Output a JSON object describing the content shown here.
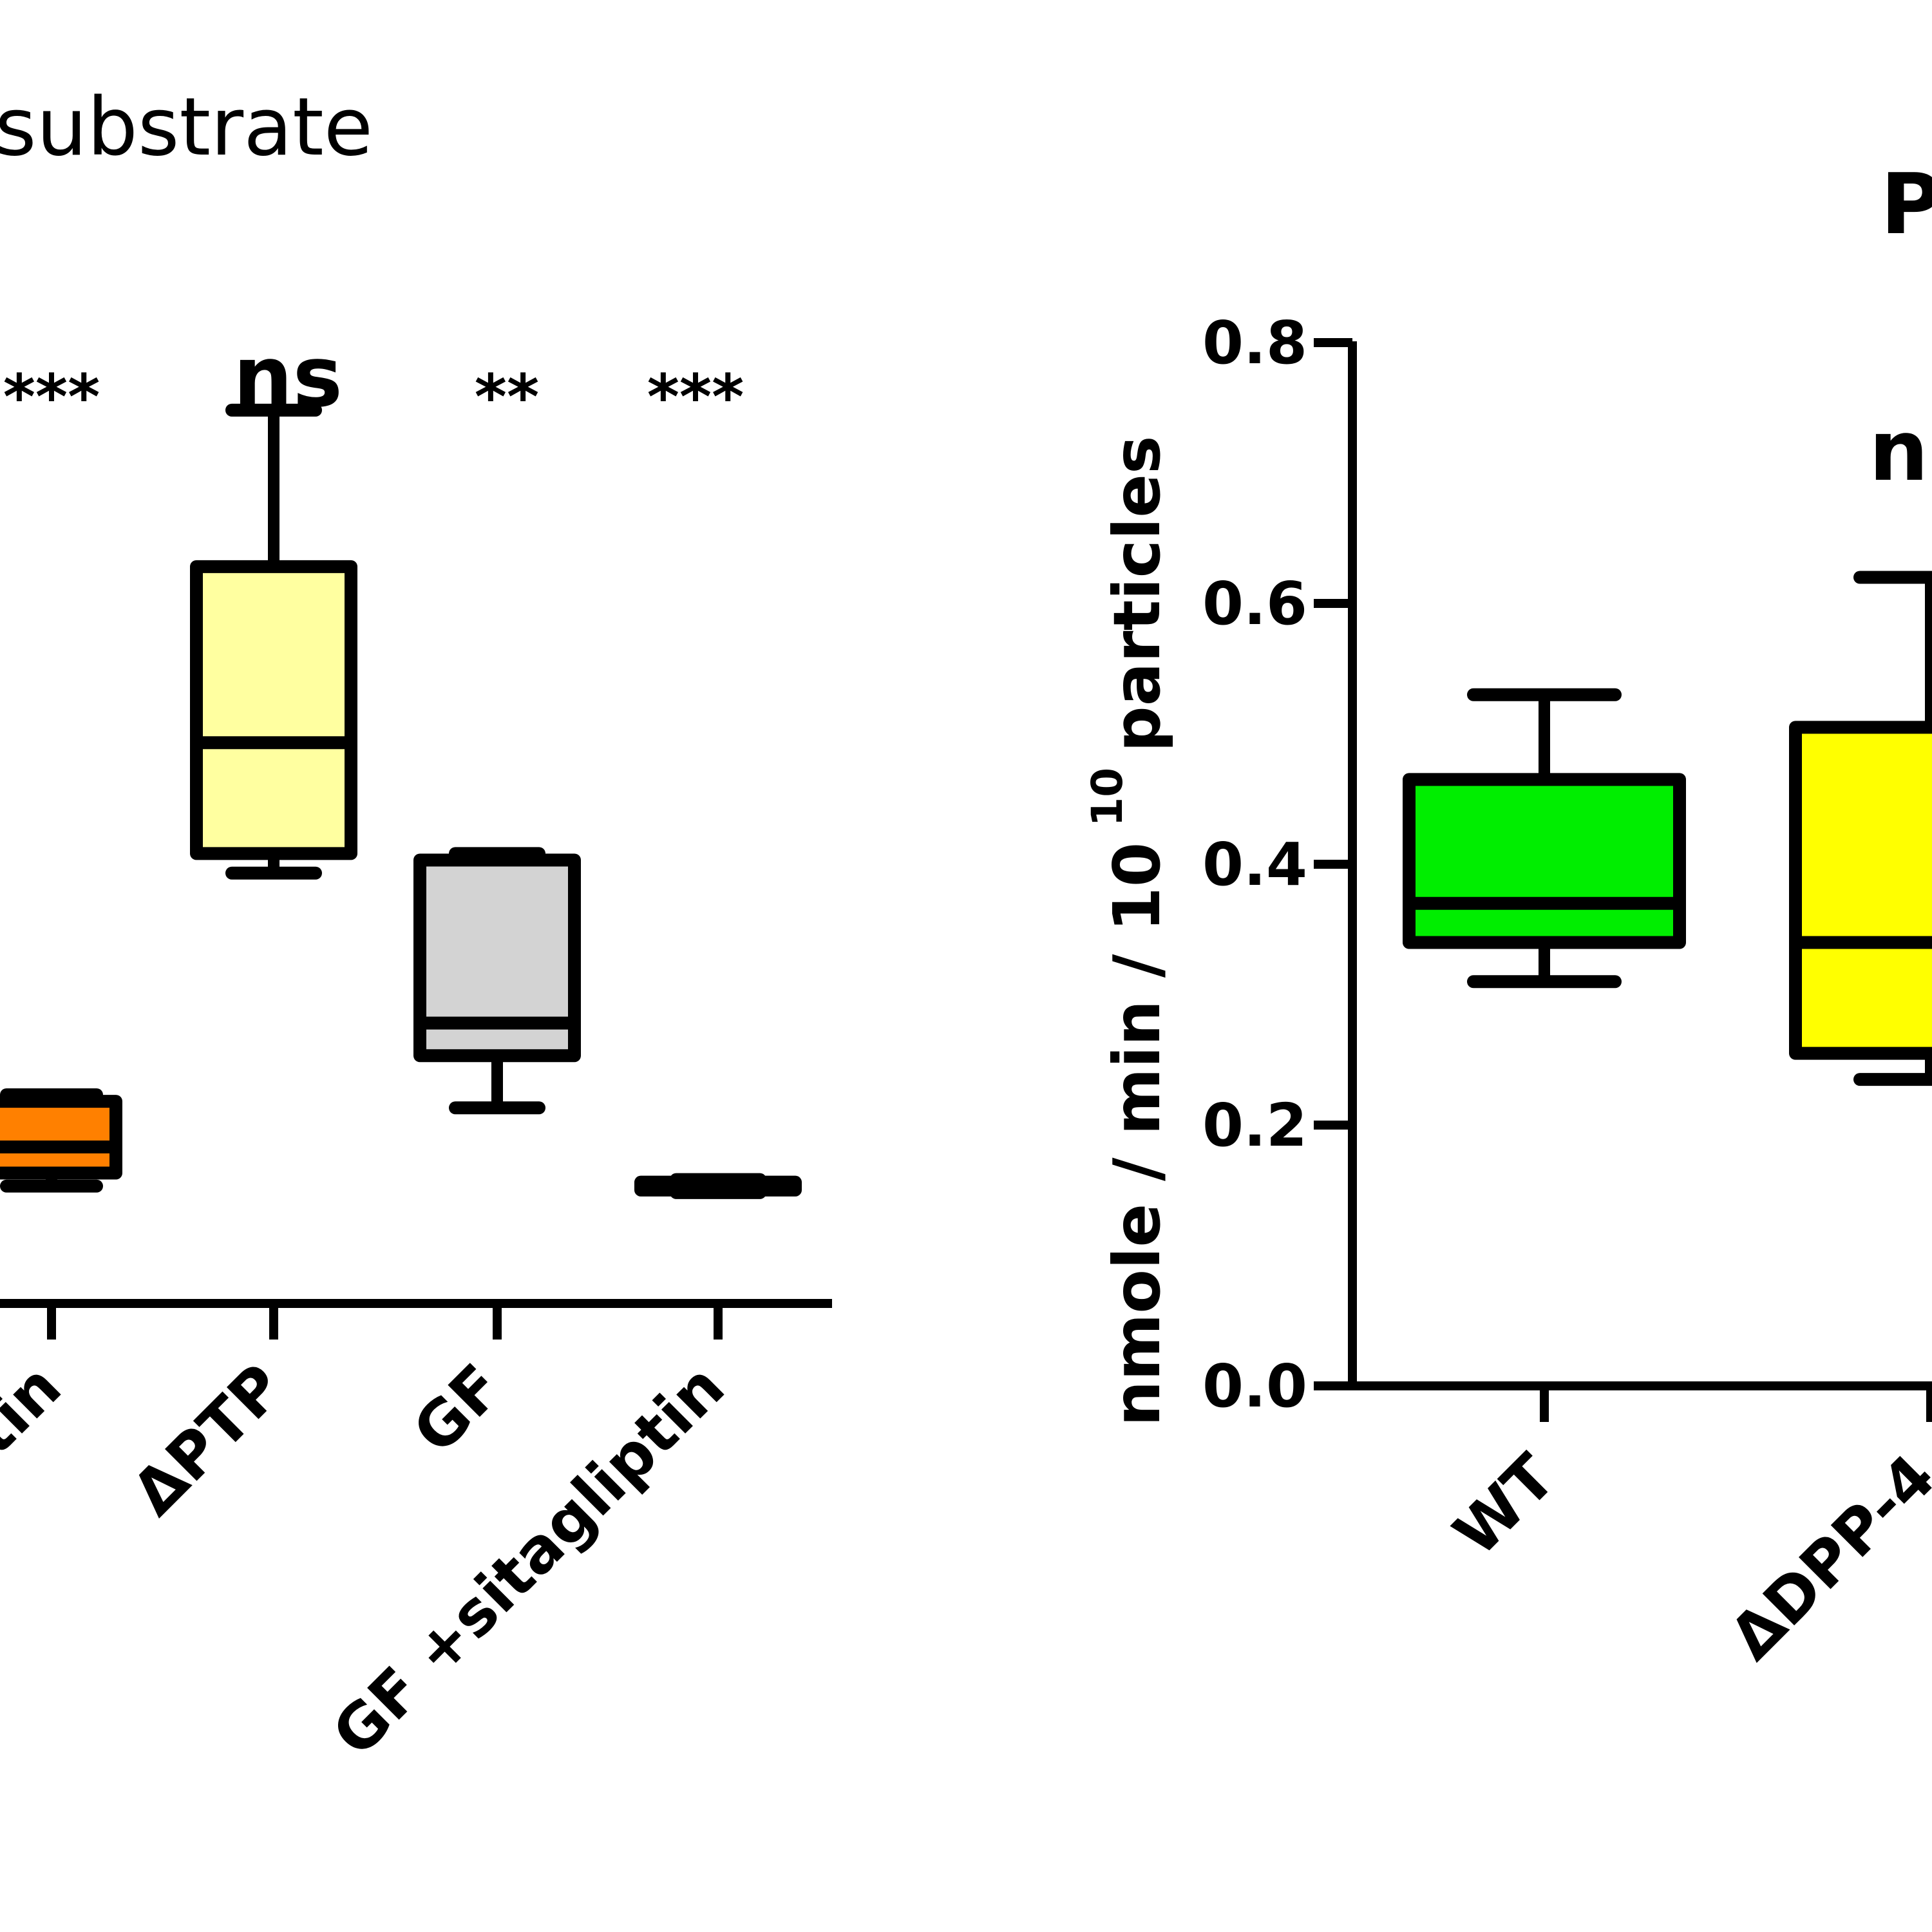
{
  "chart_data": [
    {
      "type": "box",
      "title": "substrate",
      "xlabel": "",
      "ylabel": "",
      "categories": [
        "tin",
        "ΔPTP",
        "GF",
        "GF +sitagliptin"
      ],
      "significance": [
        "***",
        "ns",
        "**",
        "***"
      ],
      "ylim": [
        0,
        0.8
      ],
      "boxes": [
        {
          "category": "tin",
          "min": 0.09,
          "q1": 0.1,
          "median": 0.12,
          "q3": 0.155,
          "max": 0.16,
          "color": "#ff8000"
        },
        {
          "category": "ΔPTP",
          "min": 0.33,
          "q1": 0.345,
          "median": 0.43,
          "q3": 0.565,
          "max": 0.685,
          "color": "#ffffa0"
        },
        {
          "category": "GF",
          "min": 0.15,
          "q1": 0.19,
          "median": 0.215,
          "q3": 0.34,
          "max": 0.345,
          "color": "#d3d3d3"
        },
        {
          "category": "GF +sitagliptin",
          "min": 0.085,
          "q1": 0.087,
          "median": 0.09,
          "q3": 0.093,
          "max": 0.095,
          "color": "#202020"
        }
      ]
    },
    {
      "type": "box",
      "title": "P",
      "xlabel": "",
      "ylabel": "nmole / min / 10",
      "ylabel_sup": "10",
      "ylabel_tail": "particles",
      "categories": [
        "WT",
        "ΔDPP-4"
      ],
      "significance": [
        "n"
      ],
      "ylim": [
        0.0,
        0.8
      ],
      "yticks": [
        "0.0",
        "0.2",
        "0.4",
        "0.6",
        "0.8"
      ],
      "boxes": [
        {
          "category": "WT",
          "min": 0.31,
          "q1": 0.34,
          "median": 0.37,
          "q3": 0.465,
          "max": 0.53,
          "color": "#00ee00"
        },
        {
          "category": "ΔDPP-4",
          "min": 0.235,
          "q1": 0.255,
          "median": 0.34,
          "q3": 0.505,
          "max": 0.62,
          "color": "#ffff00"
        }
      ]
    }
  ]
}
